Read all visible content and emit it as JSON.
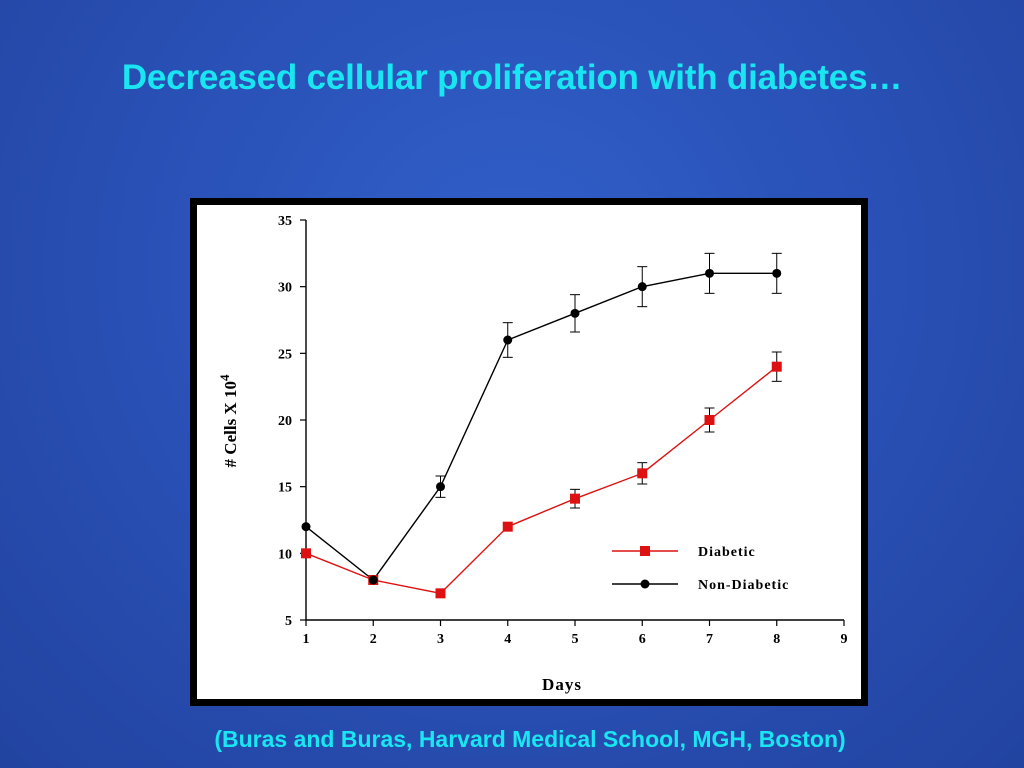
{
  "slide": {
    "title": "Decreased cellular proliferation with diabetes…",
    "citation": "(Buras and Buras, Harvard Medical School, MGH, Boston)"
  },
  "chart_data": {
    "type": "line",
    "title": "",
    "xlabel": "Days",
    "ylabel": "# Cells X 10",
    "ylabel_superscript": "4",
    "xlim": [
      1,
      9
    ],
    "ylim": [
      5,
      35
    ],
    "xticks": [
      1,
      2,
      3,
      4,
      5,
      6,
      7,
      8,
      9
    ],
    "yticks": [
      5,
      10,
      15,
      20,
      25,
      30,
      35
    ],
    "grid": false,
    "legend_position": "bottom-right",
    "series": [
      {
        "name": "Diabetic",
        "color": "#dd1111",
        "marker": "square",
        "x": [
          1,
          2,
          3,
          4,
          5,
          6,
          7,
          8
        ],
        "y": [
          10,
          8,
          7,
          12,
          14.1,
          16,
          20,
          24
        ],
        "error": [
          0,
          0,
          0,
          0,
          0.7,
          0.8,
          0.9,
          1.1
        ]
      },
      {
        "name": "Non-Diabetic",
        "color": "#000000",
        "marker": "circle",
        "x": [
          1,
          2,
          3,
          4,
          5,
          6,
          7,
          8
        ],
        "y": [
          12,
          8,
          15,
          26,
          28,
          30,
          31,
          31
        ],
        "error": [
          0,
          0,
          0.8,
          1.3,
          1.4,
          1.5,
          1.5,
          1.5
        ]
      }
    ]
  }
}
